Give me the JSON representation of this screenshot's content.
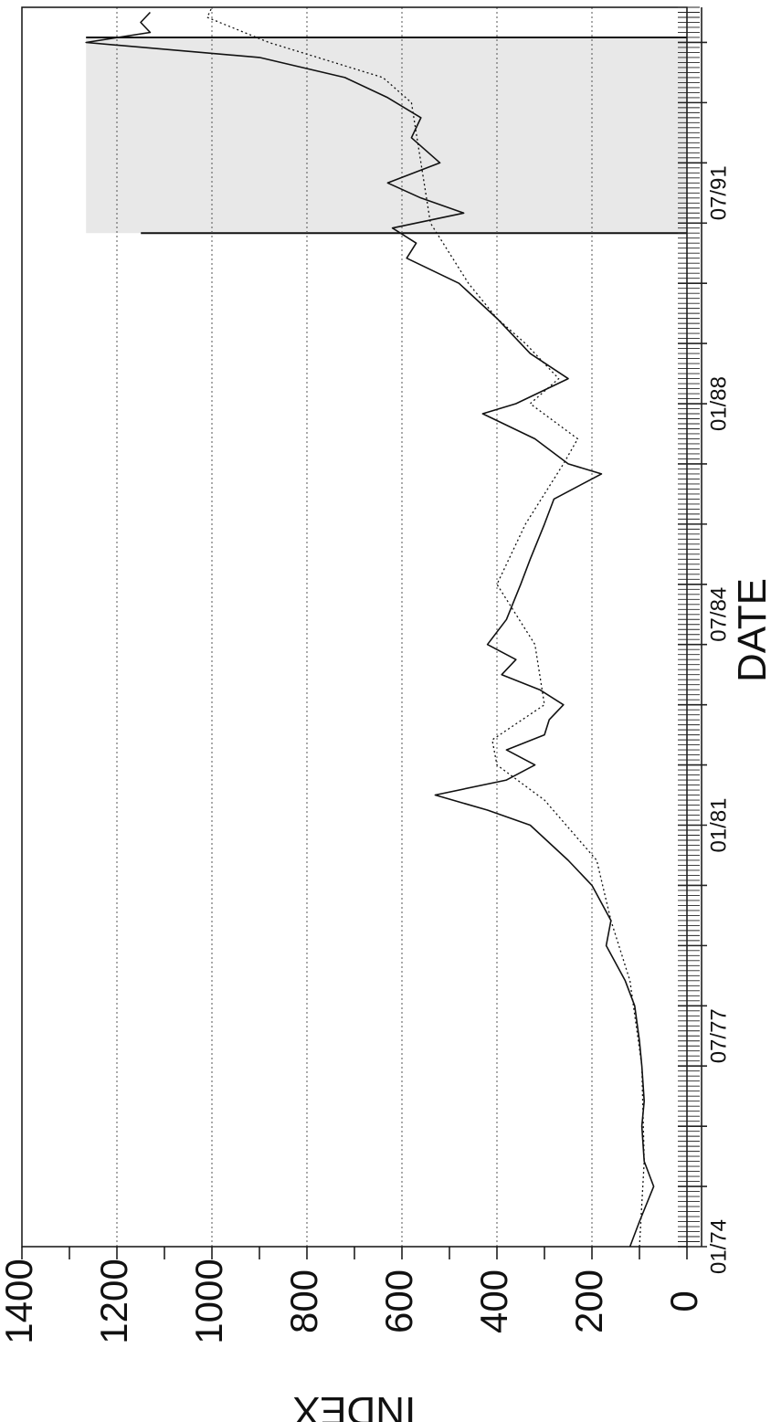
{
  "chart_data": {
    "type": "line",
    "xlabel": "DATE",
    "ylabel": "INDEX",
    "ylim": [
      0,
      1400
    ],
    "y_ticks": [
      "0",
      "200",
      "400",
      "600",
      "800",
      "1000",
      "1200",
      "1400"
    ],
    "x_tick_labels": [
      "01/74",
      "07/77",
      "01/81",
      "07/84",
      "01/88",
      "07/91"
    ],
    "xlim": [
      "1974-01",
      "1994-08"
    ],
    "grid": true,
    "orientation": "rotated 90 degrees (axes drawn sideways)",
    "shaded_region": {
      "x_start": "1990-11",
      "x_end": "1994-02",
      "y_top": 1265
    },
    "series": [
      {
        "style": "solid",
        "points": [
          [
            "1974-01",
            120
          ],
          [
            "1974-06",
            100
          ],
          [
            "1975-01",
            70
          ],
          [
            "1975-06",
            90
          ],
          [
            "1976-01",
            95
          ],
          [
            "1976-06",
            90
          ],
          [
            "1977-01",
            95
          ],
          [
            "1977-06",
            100
          ],
          [
            "1978-01",
            110
          ],
          [
            "1978-06",
            130
          ],
          [
            "1979-01",
            170
          ],
          [
            "1979-06",
            160
          ],
          [
            "1980-01",
            200
          ],
          [
            "1980-06",
            250
          ],
          [
            "1981-01",
            330
          ],
          [
            "1981-04",
            420
          ],
          [
            "1981-07",
            530
          ],
          [
            "1981-10",
            380
          ],
          [
            "1982-01",
            320
          ],
          [
            "1982-04",
            380
          ],
          [
            "1982-07",
            300
          ],
          [
            "1982-10",
            290
          ],
          [
            "1983-01",
            260
          ],
          [
            "1983-04",
            310
          ],
          [
            "1983-07",
            390
          ],
          [
            "1983-10",
            360
          ],
          [
            "1984-01",
            420
          ],
          [
            "1984-06",
            380
          ],
          [
            "1985-01",
            350
          ],
          [
            "1985-06",
            330
          ],
          [
            "1986-01",
            300
          ],
          [
            "1986-06",
            280
          ],
          [
            "1986-11",
            180
          ],
          [
            "1987-01",
            250
          ],
          [
            "1987-06",
            320
          ],
          [
            "1987-11",
            430
          ],
          [
            "1988-01",
            360
          ],
          [
            "1988-06",
            250
          ],
          [
            "1988-11",
            330
          ],
          [
            "1989-01",
            350
          ],
          [
            "1989-06",
            400
          ],
          [
            "1990-01",
            480
          ],
          [
            "1990-06",
            590
          ],
          [
            "1990-09",
            570
          ],
          [
            "1990-12",
            620
          ],
          [
            "1991-03",
            470
          ],
          [
            "1991-06",
            560
          ],
          [
            "1991-09",
            630
          ],
          [
            "1992-01",
            520
          ],
          [
            "1992-06",
            580
          ],
          [
            "1992-10",
            560
          ],
          [
            "1993-02",
            630
          ],
          [
            "1993-06",
            720
          ],
          [
            "1993-10",
            900
          ],
          [
            "1994-01",
            1265
          ],
          [
            "1994-03",
            1130
          ],
          [
            "1994-05",
            1150
          ],
          [
            "1994-07",
            1130
          ]
        ]
      },
      {
        "style": "dotted",
        "points": [
          [
            "1974-01",
            100
          ],
          [
            "1975-06",
            90
          ],
          [
            "1977-01",
            95
          ],
          [
            "1978-06",
            120
          ],
          [
            "1979-06",
            160
          ],
          [
            "1980-06",
            190
          ],
          [
            "1981-06",
            300
          ],
          [
            "1982-01",
            400
          ],
          [
            "1982-06",
            410
          ],
          [
            "1983-01",
            300
          ],
          [
            "1984-01",
            320
          ],
          [
            "1985-01",
            400
          ],
          [
            "1986-01",
            340
          ],
          [
            "1987-01",
            260
          ],
          [
            "1987-06",
            230
          ],
          [
            "1988-01",
            330
          ],
          [
            "1988-06",
            270
          ],
          [
            "1989-01",
            340
          ],
          [
            "1989-06",
            400
          ],
          [
            "1990-01",
            460
          ],
          [
            "1991-01",
            540
          ],
          [
            "1992-01",
            560
          ],
          [
            "1993-01",
            580
          ],
          [
            "1993-06",
            640
          ],
          [
            "1994-01",
            880
          ],
          [
            "1994-06",
            1010
          ],
          [
            "1994-08",
            1000
          ]
        ]
      }
    ]
  }
}
